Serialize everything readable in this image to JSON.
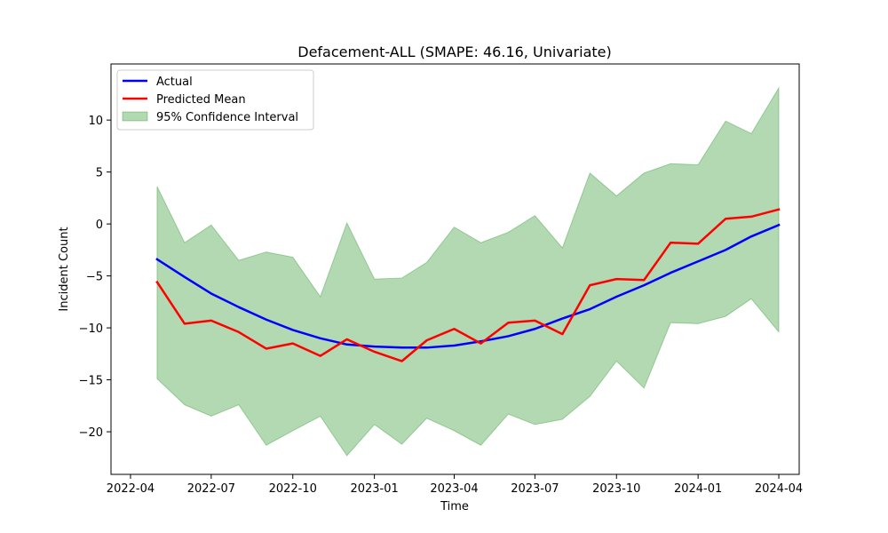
{
  "chart_data": {
    "type": "line",
    "title": "Defacement-ALL (SMAPE: 46.16, Univariate)",
    "xlabel": "Time",
    "ylabel": "Incident Count",
    "x": [
      "2022-05-01",
      "2022-06-01",
      "2022-07-01",
      "2022-08-01",
      "2022-09-01",
      "2022-10-01",
      "2022-11-01",
      "2022-12-01",
      "2023-01-01",
      "2023-02-01",
      "2023-03-01",
      "2023-04-01",
      "2023-05-01",
      "2023-06-01",
      "2023-07-01",
      "2023-08-01",
      "2023-09-01",
      "2023-10-01",
      "2023-11-01",
      "2023-12-01",
      "2024-01-01",
      "2024-02-01",
      "2024-03-01",
      "2024-04-01"
    ],
    "xticks": [
      {
        "date": "2022-04-01",
        "label": "2022-04"
      },
      {
        "date": "2022-07-01",
        "label": "2022-07"
      },
      {
        "date": "2022-10-01",
        "label": "2022-10"
      },
      {
        "date": "2023-01-01",
        "label": "2023-01"
      },
      {
        "date": "2023-04-01",
        "label": "2023-04"
      },
      {
        "date": "2023-07-01",
        "label": "2023-07"
      },
      {
        "date": "2023-10-01",
        "label": "2023-10"
      },
      {
        "date": "2024-01-01",
        "label": "2024-01"
      },
      {
        "date": "2024-04-01",
        "label": "2024-04"
      }
    ],
    "xlim": [
      "2022-03-10",
      "2024-04-24"
    ],
    "ylim": [
      -24.1,
      15.4
    ],
    "yticks": [
      {
        "value": 10,
        "label": "10"
      },
      {
        "value": 5,
        "label": "5"
      },
      {
        "value": 0,
        "label": "0"
      },
      {
        "value": -5,
        "label": "−5"
      },
      {
        "value": -10,
        "label": "−10"
      },
      {
        "value": -15,
        "label": "−15"
      },
      {
        "value": -20,
        "label": "−20"
      }
    ],
    "grid": false,
    "legend": "top-left",
    "series": [
      {
        "name": "Actual",
        "color": "#0000ff",
        "values": [
          -3.4,
          -5.1,
          -6.7,
          -8.0,
          -9.2,
          -10.2,
          -11.0,
          -11.6,
          -11.8,
          -11.9,
          -11.9,
          -11.7,
          -11.3,
          -10.8,
          -10.1,
          -9.1,
          -8.2,
          -7.0,
          -5.9,
          -4.7,
          -3.6,
          -2.5,
          -1.2,
          -0.1
        ]
      },
      {
        "name": "Predicted Mean",
        "color": "#ff0000",
        "values": [
          -5.6,
          -9.6,
          -9.3,
          -10.4,
          -12.0,
          -11.5,
          -12.7,
          -11.1,
          -12.3,
          -13.2,
          -11.2,
          -10.1,
          -11.5,
          -9.5,
          -9.3,
          -10.6,
          -5.9,
          -5.3,
          -5.4,
          -1.8,
          -1.9,
          0.5,
          0.7,
          1.4
        ]
      }
    ],
    "band": {
      "name": "95% Confidence Interval",
      "color": "#008000",
      "lower": [
        -14.9,
        -17.4,
        -18.5,
        -17.4,
        -21.3,
        -19.9,
        -18.5,
        -22.3,
        -19.3,
        -21.2,
        -18.7,
        -19.9,
        -21.3,
        -18.3,
        -19.3,
        -18.8,
        -16.6,
        -13.2,
        -15.8,
        -9.5,
        -9.6,
        -8.9,
        -7.2,
        -10.4
      ],
      "upper": [
        3.6,
        -1.8,
        -0.1,
        -3.5,
        -2.7,
        -3.2,
        -7.0,
        0.1,
        -5.3,
        -5.2,
        -3.7,
        -0.3,
        -1.8,
        -0.8,
        0.8,
        -2.3,
        4.9,
        2.7,
        4.9,
        5.8,
        5.7,
        9.9,
        8.7,
        13.1
      ]
    }
  }
}
